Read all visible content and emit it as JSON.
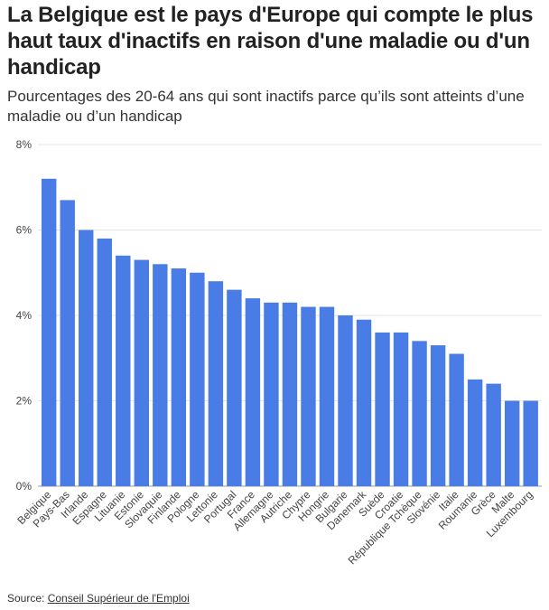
{
  "title": "La Belgique est le pays d'Europe qui compte le plus haut taux d'inactifs en raison d'une maladie ou d'un handicap",
  "subtitle": "Pourcentages des 20-64 ans qui sont inactifs parce qu’ils sont atteints d’une maladie ou d’un handicap",
  "source": {
    "label": "Source: ",
    "link_text": "Conseil Supérieur de l'Emploi"
  },
  "colors": {
    "bar": "#4a7ce6",
    "grid": "#e6e6e6",
    "axis": "#999999"
  },
  "chart_data": {
    "type": "bar",
    "title": "La Belgique est le pays d'Europe qui compte le plus haut taux d'inactifs en raison d'une maladie ou d'un handicap",
    "xlabel": "",
    "ylabel": "",
    "ylim": [
      0,
      8
    ],
    "yticks": [
      0,
      2,
      4,
      6,
      8
    ],
    "ytick_labels": [
      "0%",
      "2%",
      "4%",
      "6%",
      "8%"
    ],
    "grid": true,
    "categories": [
      "Belgique",
      "Pays-Bas",
      "Irlande",
      "Espagne",
      "Lituanie",
      "Estonie",
      "Slovaquie",
      "Finlande",
      "Pologne",
      "Lettonie",
      "Portugal",
      "France",
      "Allemagne",
      "Autriche",
      "Chypre",
      "Hongrie",
      "Bulgarie",
      "Danemark",
      "Suède",
      "Croatie",
      "République Tchèque",
      "Slovénie",
      "Italie",
      "Roumanie",
      "Grèce",
      "Malte",
      "Luxembourg"
    ],
    "values": [
      7.2,
      6.7,
      6.0,
      5.8,
      5.4,
      5.3,
      5.2,
      5.1,
      5.0,
      4.8,
      4.6,
      4.4,
      4.3,
      4.3,
      4.2,
      4.2,
      4.0,
      3.9,
      3.6,
      3.6,
      3.4,
      3.3,
      3.1,
      2.5,
      2.4,
      2.0,
      2.0
    ]
  }
}
